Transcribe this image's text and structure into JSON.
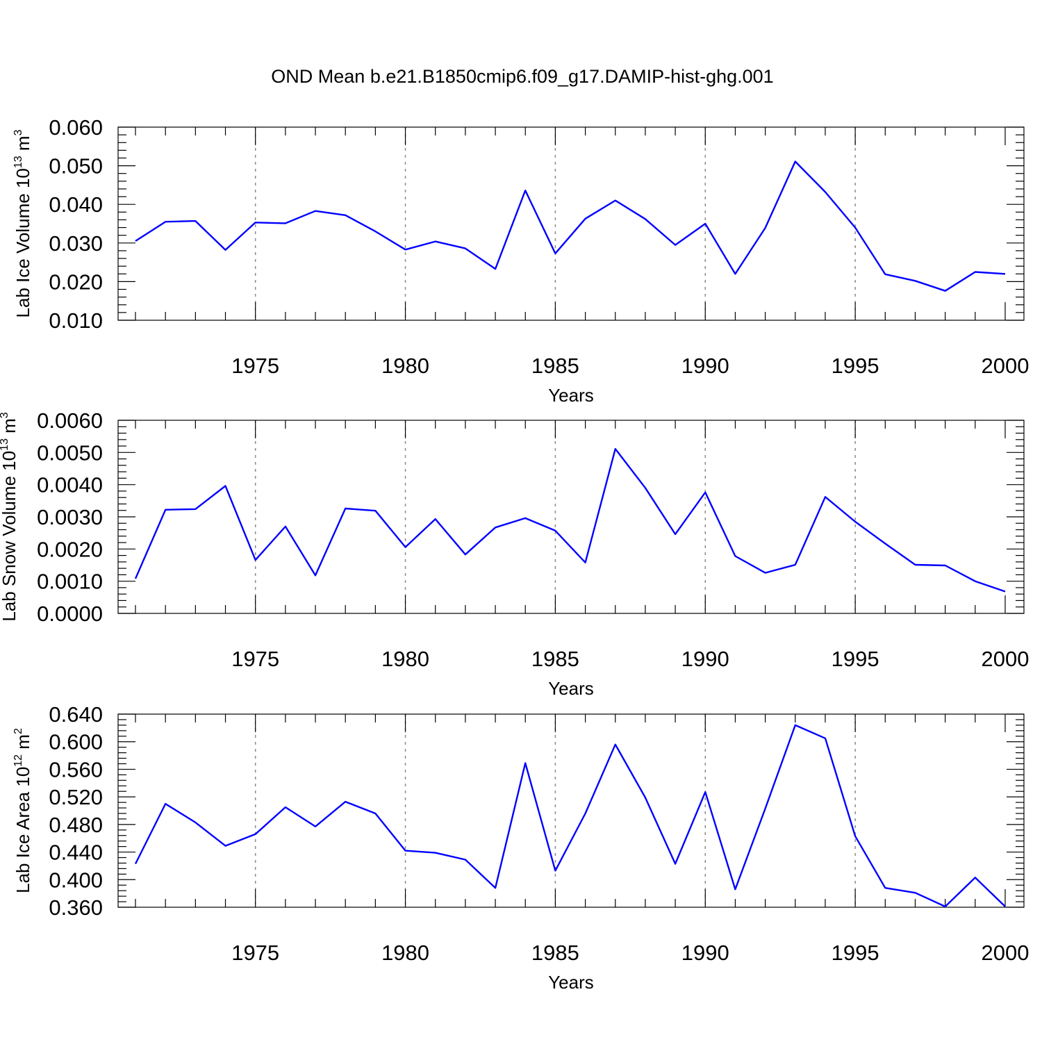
{
  "title": "OND Mean b.e21.B1850cmip6.f09_g17.DAMIP-hist-ghg.001",
  "chart_data": [
    {
      "type": "line",
      "ylabel": {
        "text": "Lab Ice Volume 10",
        "exp": "13",
        "unit": " m",
        "unit_exp": "3"
      },
      "xlabel": "Years",
      "xlim": [
        1971,
        2000
      ],
      "ylim": [
        0.01,
        0.06
      ],
      "x_ticks": [
        1975,
        1980,
        1985,
        1990,
        1995,
        2000
      ],
      "x_tick_labels": [
        "1975",
        "1980",
        "1985",
        "1990",
        "1995",
        "2000"
      ],
      "y_ticks": [
        0.01,
        0.02,
        0.03,
        0.04,
        0.05,
        0.06
      ],
      "y_tick_labels": [
        "0.010",
        "0.020",
        "0.030",
        "0.040",
        "0.050",
        "0.060"
      ],
      "grid": "vertical dashed at major x ticks",
      "color": "#0000ff",
      "x": [
        1971,
        1972,
        1973,
        1974,
        1975,
        1976,
        1977,
        1978,
        1979,
        1980,
        1981,
        1982,
        1983,
        1984,
        1985,
        1986,
        1987,
        1988,
        1989,
        1990,
        1991,
        1992,
        1993,
        1994,
        1995,
        1996,
        1997,
        1998,
        1999,
        2000
      ],
      "values": [
        0.0305,
        0.0355,
        0.0357,
        0.0282,
        0.0353,
        0.0351,
        0.0383,
        0.0372,
        0.033,
        0.0283,
        0.0304,
        0.0286,
        0.0233,
        0.0436,
        0.0273,
        0.0363,
        0.041,
        0.0362,
        0.0295,
        0.035,
        0.022,
        0.0339,
        0.0511,
        0.0432,
        0.034,
        0.0219,
        0.0202,
        0.0176,
        0.0225,
        0.022
      ]
    },
    {
      "type": "line",
      "ylabel": {
        "text": "Lab Snow Volume 10",
        "exp": "13",
        "unit": " m",
        "unit_exp": "3"
      },
      "xlabel": "Years",
      "xlim": [
        1971,
        2000
      ],
      "ylim": [
        0.0,
        0.006
      ],
      "x_ticks": [
        1975,
        1980,
        1985,
        1990,
        1995,
        2000
      ],
      "x_tick_labels": [
        "1975",
        "1980",
        "1985",
        "1990",
        "1995",
        "2000"
      ],
      "y_ticks": [
        0.0,
        0.001,
        0.002,
        0.003,
        0.004,
        0.005,
        0.006
      ],
      "y_tick_labels": [
        "0.0000",
        "0.0010",
        "0.0020",
        "0.0030",
        "0.0040",
        "0.0050",
        "0.0060"
      ],
      "grid": "vertical dashed at major x ticks",
      "color": "#0000ff",
      "x": [
        1971,
        1972,
        1973,
        1974,
        1975,
        1976,
        1977,
        1978,
        1979,
        1980,
        1981,
        1982,
        1983,
        1984,
        1985,
        1986,
        1987,
        1988,
        1989,
        1990,
        1991,
        1992,
        1993,
        1994,
        1995,
        1996,
        1997,
        1998,
        1999,
        2000
      ],
      "values": [
        0.00108,
        0.00322,
        0.00324,
        0.00396,
        0.00166,
        0.0027,
        0.00118,
        0.00326,
        0.00319,
        0.00206,
        0.00293,
        0.00183,
        0.00267,
        0.00296,
        0.00257,
        0.00158,
        0.00511,
        0.0039,
        0.00246,
        0.00376,
        0.00178,
        0.00126,
        0.00151,
        0.00362,
        0.00285,
        0.00217,
        0.00151,
        0.00149,
        0.001,
        0.00068
      ]
    },
    {
      "type": "line",
      "ylabel": {
        "text": "Lab Ice Area 10",
        "exp": "12",
        "unit": " m",
        "unit_exp": "2"
      },
      "xlabel": "Years",
      "xlim": [
        1971,
        2000
      ],
      "ylim": [
        0.36,
        0.64
      ],
      "x_ticks": [
        1975,
        1980,
        1985,
        1990,
        1995,
        2000
      ],
      "x_tick_labels": [
        "1975",
        "1980",
        "1985",
        "1990",
        "1995",
        "2000"
      ],
      "y_ticks": [
        0.36,
        0.4,
        0.44,
        0.48,
        0.52,
        0.56,
        0.6,
        0.64
      ],
      "y_tick_labels": [
        "0.360",
        "0.400",
        "0.440",
        "0.480",
        "0.520",
        "0.560",
        "0.600",
        "0.640"
      ],
      "grid": "vertical dashed at major x ticks",
      "color": "#0000ff",
      "x": [
        1971,
        1972,
        1973,
        1974,
        1975,
        1976,
        1977,
        1978,
        1979,
        1980,
        1981,
        1982,
        1983,
        1984,
        1985,
        1986,
        1987,
        1988,
        1989,
        1990,
        1991,
        1992,
        1993,
        1994,
        1995,
        1996,
        1997,
        1998,
        1999,
        2000
      ],
      "values": [
        0.423,
        0.51,
        0.483,
        0.449,
        0.466,
        0.505,
        0.477,
        0.513,
        0.496,
        0.442,
        0.439,
        0.429,
        0.388,
        0.569,
        0.413,
        0.496,
        0.596,
        0.519,
        0.423,
        0.527,
        0.386,
        0.503,
        0.624,
        0.605,
        0.463,
        0.388,
        0.381,
        0.361,
        0.403,
        0.361
      ]
    }
  ]
}
